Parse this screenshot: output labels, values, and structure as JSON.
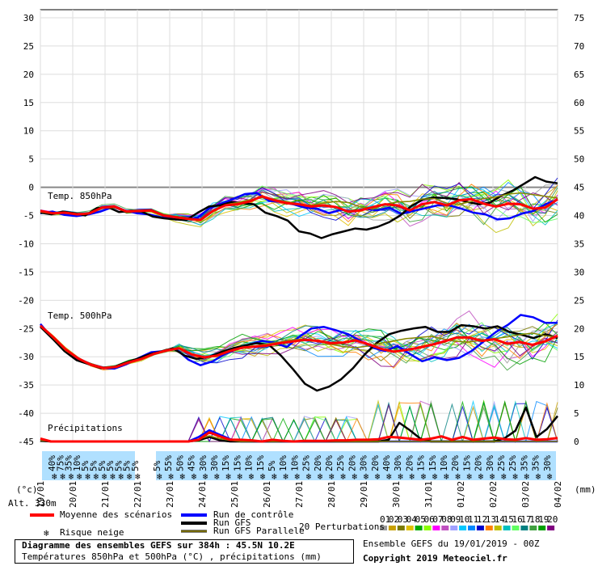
{
  "chart_data": {
    "type": "line",
    "left_axis": {
      "unit": "(°c)",
      "ticks": [
        30,
        25,
        20,
        15,
        10,
        5,
        0,
        -5,
        -10,
        -15,
        -20,
        -25,
        -30,
        -35,
        -40,
        -45
      ]
    },
    "right_axis": {
      "unit": "(mm)",
      "ticks": [
        75,
        70,
        65,
        60,
        55,
        50,
        45,
        40,
        35,
        30,
        25,
        20,
        15,
        10,
        5,
        0
      ]
    },
    "x_ticks": [
      "19/01",
      "20/01",
      "21/01",
      "22/01",
      "23/01",
      "24/01",
      "25/01",
      "26/01",
      "27/01",
      "28/01",
      "29/01",
      "30/01",
      "31/01",
      "01/02",
      "02/02",
      "03/02",
      "04/02"
    ],
    "labels": {
      "t850": "Temp. 850hPa",
      "t500": "Temp. 500hPa",
      "precip": "Précipitations",
      "alt": "Alt. 330m"
    },
    "snow_risk": [
      "40%",
      "75%",
      "35%",
      "10%",
      "5%",
      "5%",
      "5%",
      "5%",
      "5%",
      "5%",
      "5%",
      "5%",
      "55%",
      "50%",
      "45%",
      "30%",
      "30%",
      "15%",
      "15%",
      "10%",
      "15%",
      "5%",
      "10%",
      "10%",
      "25%",
      "20%",
      "20%",
      "25%",
      "20%",
      "30%",
      "20%",
      "40%",
      "30%",
      "20%",
      "15%",
      "15%",
      "10%",
      "20%",
      "15%",
      "20%",
      "30%",
      "25%",
      "25%",
      "35%",
      "35%",
      "30%"
    ],
    "series": [
      {
        "name": "Moyenne des scénarios",
        "color": "#ff0000",
        "t850": [
          -4.2,
          -4.6,
          -4.5,
          -4.8,
          -4.6,
          -3.6,
          -3.4,
          -4.3,
          -4.2,
          -4.1,
          -5.0,
          -5.3,
          -5.6,
          -5.8,
          -4.2,
          -3.2,
          -3.0,
          -2.5,
          -1.6,
          -2.3,
          -2.8,
          -3.0,
          -3.4,
          -3.2,
          -3.5,
          -4.3,
          -4.1,
          -3.5,
          -3.0,
          -3.2,
          -4.1,
          -3.0,
          -2.6,
          -3.2,
          -2.3,
          -2.1,
          -2.9,
          -3.4,
          -2.9,
          -3.0,
          -3.8,
          -3.6,
          -2.1
        ],
        "t500": [
          -24.5,
          -26.5,
          -28.7,
          -30.3,
          -31.4,
          -32.0,
          -31.8,
          -31.0,
          -30.4,
          -29.5,
          -28.9,
          -28.5,
          -29.6,
          -30.1,
          -29.8,
          -29.0,
          -28.4,
          -28.2,
          -28.0,
          -27.6,
          -27.3,
          -27.0,
          -27.2,
          -27.6,
          -27.5,
          -27.1,
          -27.8,
          -28.6,
          -29.1,
          -28.8,
          -28.4,
          -27.9,
          -27.3,
          -26.6,
          -26.6,
          -27.2,
          -26.9,
          -27.7,
          -27.4,
          -27.9,
          -27.3,
          -26.3
        ],
        "precip": [
          0.5,
          0,
          0,
          0,
          0,
          0,
          0,
          0,
          0,
          0,
          0,
          0,
          0,
          0,
          0,
          0.3,
          1.6,
          0.9,
          0.3,
          0.3,
          0.2,
          0,
          0.3,
          0.1,
          0,
          0.1,
          0.1,
          0.1,
          0.2,
          0.2,
          0.3,
          0.3,
          0.4,
          0.8,
          0.7,
          0.5,
          0.3,
          0.5,
          0.9,
          0.3,
          0.8,
          0.3,
          0.5,
          0.7,
          0.4,
          0.3,
          0.6,
          0.3,
          0.4,
          0.6
        ]
      },
      {
        "name": "Run de contrôle",
        "color": "#0000ff",
        "t850": [
          -4.6,
          -4.3,
          -4.9,
          -5.1,
          -4.8,
          -4.3,
          -3.5,
          -4.1,
          -4.6,
          -4.8,
          -5.3,
          -5.5,
          -5.6,
          -5.5,
          -3.8,
          -2.9,
          -2.1,
          -1.2,
          -1.0,
          -2.4,
          -2.6,
          -3.0,
          -3.6,
          -3.8,
          -4.6,
          -4.0,
          -4.3,
          -3.8,
          -4.1,
          -3.6,
          -4.7,
          -4.2,
          -3.7,
          -3.2,
          -3.2,
          -3.8,
          -4.5,
          -4.8,
          -5.7,
          -5.5,
          -4.7,
          -4.2,
          -3.0,
          -2.2
        ],
        "t500": [
          -24.2,
          -26.8,
          -29.0,
          -30.5,
          -31.2,
          -32.0,
          -32.1,
          -31.3,
          -30.2,
          -29.2,
          -29.0,
          -28.6,
          -30.5,
          -31.5,
          -30.8,
          -29.5,
          -28.6,
          -27.8,
          -27.2,
          -27.5,
          -28.3,
          -26.5,
          -25.0,
          -24.7,
          -25.3,
          -26.0,
          -27.2,
          -28.4,
          -29.0,
          -28.1,
          -29.5,
          -30.8,
          -30.1,
          -30.6,
          -30.2,
          -29.0,
          -27.3,
          -25.6,
          -24.3,
          -22.6,
          -23.0,
          -24.0,
          -24.0
        ],
        "precip": [
          0.3,
          0,
          0,
          0,
          0,
          0,
          0,
          0,
          0,
          0,
          0,
          0,
          0,
          0,
          0,
          0.8,
          2.0,
          1.2,
          0.4,
          0,
          0,
          0,
          0,
          0,
          0,
          0,
          0,
          0,
          0,
          0,
          0,
          0,
          0,
          0,
          0,
          0,
          0,
          0,
          0,
          0,
          0,
          0,
          0,
          0,
          0,
          0,
          0,
          0,
          0,
          0
        ]
      },
      {
        "name": "Run GFS",
        "color": "#000000",
        "t850": [
          -4.5,
          -4.8,
          -4.3,
          -4.6,
          -5.0,
          -3.7,
          -3.5,
          -4.4,
          -4.2,
          -4.3,
          -5.2,
          -5.5,
          -5.7,
          -5.8,
          -4.5,
          -3.4,
          -3.2,
          -2.6,
          -2.8,
          -3.0,
          -4.5,
          -5.1,
          -5.9,
          -7.8,
          -8.2,
          -9.0,
          -8.3,
          -7.8,
          -7.3,
          -7.5,
          -7.0,
          -6.2,
          -5.0,
          -3.3,
          -2.2,
          -1.8,
          -1.9,
          -2.1,
          -2.6,
          -3.0,
          -2.7,
          -1.5,
          -0.6,
          0.6,
          1.8,
          1.0,
          0.7
        ],
        "t500": [
          -24.7,
          -26.8,
          -29.0,
          -30.6,
          -31.3,
          -32.0,
          -31.9,
          -31.1,
          -30.4,
          -29.6,
          -29.1,
          -28.5,
          -29.8,
          -30.4,
          -30.0,
          -29.2,
          -28.5,
          -28.0,
          -27.6,
          -27.9,
          -29.8,
          -32.2,
          -34.8,
          -36.0,
          -35.3,
          -34.0,
          -32.0,
          -29.5,
          -27.5,
          -26.0,
          -25.4,
          -25.0,
          -24.7,
          -25.6,
          -25.6,
          -24.4,
          -24.6,
          -25.0,
          -24.6,
          -25.6,
          -26.1,
          -26.7,
          -26.0,
          -26.7
        ],
        "precip": [
          0.1,
          0,
          0,
          0,
          0,
          0,
          0,
          0,
          0,
          0,
          0,
          0,
          0,
          0,
          0,
          0.2,
          0.8,
          0.2,
          0,
          0,
          0,
          0,
          0,
          0,
          0,
          0,
          0,
          0,
          0,
          0,
          0,
          0,
          0,
          0.3,
          3.3,
          2.0,
          0.5,
          0,
          0,
          0,
          0,
          0,
          0,
          0,
          0.6,
          1.9,
          6.0,
          0.8,
          2.2,
          4.5
        ]
      },
      {
        "name": "Run GFS Parallele",
        "color": "#888800",
        "t850": [
          -4.4,
          -4.7,
          -4.4,
          -4.9,
          -4.7,
          -3.7,
          -3.6,
          -4.3,
          -4.3,
          -4.2,
          -5.1,
          -5.4,
          -5.7,
          -5.7,
          -4.4,
          -3.1,
          -2.7,
          -2.2,
          -1.8,
          -2.2,
          -2.5,
          -3.0,
          -3.2,
          -2.8,
          -2.5,
          -2.7,
          -3.5,
          -3.9,
          -3.0,
          -2.6,
          -2.5,
          -2.1,
          -2.0,
          -2.8,
          -3.0,
          -2.5,
          -2.0,
          -1.7,
          -1.2,
          -1.0,
          -1.3,
          -1.6,
          -1.9
        ],
        "t500": [
          -24.6,
          -26.7,
          -28.9,
          -30.4,
          -31.2,
          -31.9,
          -31.7,
          -31.0,
          -30.3,
          -29.4,
          -28.8,
          -28.4,
          -29.5,
          -30.2,
          -29.7,
          -29.1,
          -28.3,
          -28.1,
          -27.7,
          -27.4,
          -27.0,
          -26.9,
          -27.2,
          -27.8,
          -28.2,
          -28.4,
          -28.1,
          -27.6,
          -27.2,
          -26.8,
          -26.6,
          -26.4,
          -26.9,
          -27.3,
          -27.4,
          -27.1,
          -26.8,
          -26.5,
          -26.1,
          -25.8,
          -26.3,
          -26.5
        ],
        "precip": [
          0.2,
          0,
          0,
          0,
          0,
          0,
          0,
          0,
          0,
          0,
          0,
          0,
          0,
          0,
          0,
          0.4,
          1.0,
          0.5,
          0.2,
          0,
          0,
          0,
          0,
          0,
          0,
          0,
          0,
          0,
          0,
          0,
          0,
          0,
          0,
          0,
          0,
          0,
          0,
          0,
          0,
          0,
          0,
          0,
          0,
          0,
          0,
          0,
          0,
          0,
          0,
          0
        ]
      }
    ],
    "perturbation_colors": [
      "#9a9a9a",
      "#c8a000",
      "#7a7a00",
      "#e0c000",
      "#00aa00",
      "#8cff00",
      "#ff00ff",
      "#c050c0",
      "#a0a0ff",
      "#00c8ff",
      "#0088ff",
      "#0000cc",
      "#ff8000",
      "#c0c000",
      "#00c0c0",
      "#60ff60",
      "#008080",
      "#40a040",
      "#00a000",
      "#800080"
    ]
  },
  "legend": {
    "mean": "Moyenne des scénarios",
    "snow": "Risque neige",
    "control": "Run de contrôle",
    "gfs": "Run GFS",
    "gfs_par": "Run GFS Parallele",
    "perturb_label": "20 Perturbations",
    "perturb_numbers": [
      "01",
      "02",
      "03",
      "04",
      "05",
      "06",
      "07",
      "08",
      "09",
      "10",
      "11",
      "12",
      "13",
      "14",
      "15",
      "16",
      "17",
      "18",
      "19",
      "20"
    ],
    "ensemble": "Ensemble GEFS du 19/01/2019 - 00Z",
    "copyright": "Copyright 2019 Meteociel.fr"
  },
  "footer": {
    "line1": "Diagramme des ensembles GEFS sur 384h : 45.5N 10.2E",
    "line2": "Températures 850hPa et 500hPa (°C) , précipitations (mm)"
  }
}
